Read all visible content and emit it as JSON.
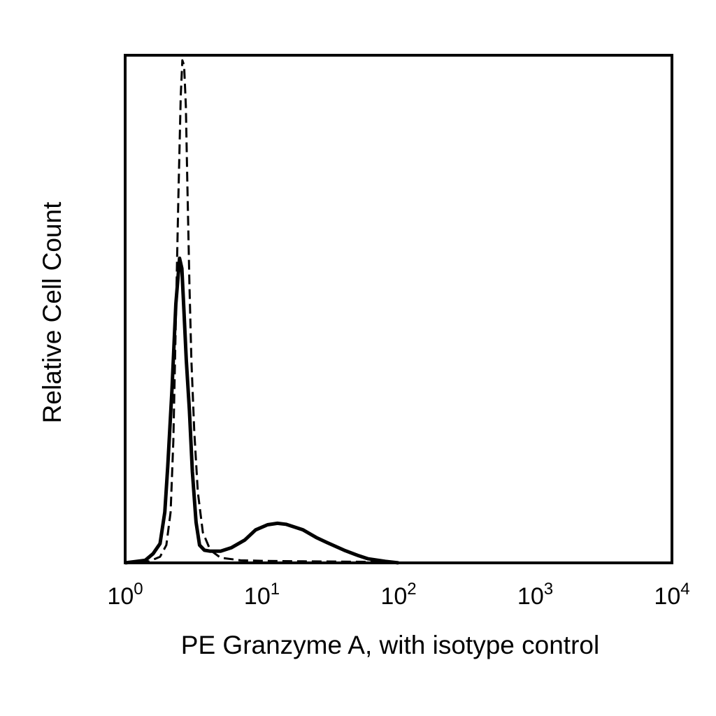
{
  "chart_data": {
    "type": "line",
    "title": "",
    "xlabel": "PE Granzyme A, with isotype control",
    "ylabel": "Relative Cell Count",
    "x_scale": "log",
    "xlim": [
      1,
      10000
    ],
    "ylim": [
      0,
      100
    ],
    "x_ticks": [
      {
        "base": "10",
        "exp": "0",
        "value": 1
      },
      {
        "base": "10",
        "exp": "1",
        "value": 10
      },
      {
        "base": "10",
        "exp": "2",
        "value": 100
      },
      {
        "base": "10",
        "exp": "3",
        "value": 1000
      },
      {
        "base": "10",
        "exp": "4",
        "value": 10000
      }
    ],
    "y_ticks": [],
    "grid": false,
    "legend": "none",
    "series": [
      {
        "style": "dashed",
        "color": "#000000",
        "x": [
          1.0,
          1.5,
          1.8,
          2.0,
          2.15,
          2.25,
          2.35,
          2.45,
          2.55,
          2.62,
          2.7,
          2.78,
          2.85,
          2.95,
          3.05,
          3.2,
          3.4,
          3.7,
          4.2,
          5.0,
          7.0,
          10.0,
          20.0,
          60.0,
          100.0
        ],
        "y": [
          0,
          0.3,
          1.2,
          3.5,
          10,
          24,
          48,
          72,
          92,
          99,
          98,
          90,
          75,
          55,
          40,
          26,
          14,
          6,
          2.5,
          1,
          0.5,
          0.4,
          0.3,
          0.2,
          0
        ]
      },
      {
        "style": "solid",
        "color": "#000000",
        "x": [
          1.0,
          1.4,
          1.6,
          1.8,
          1.95,
          2.05,
          2.2,
          2.35,
          2.5,
          2.6,
          2.7,
          2.8,
          2.95,
          3.1,
          3.3,
          3.5,
          3.8,
          4.2,
          5.0,
          6.0,
          7.5,
          9.0,
          11.0,
          13.0,
          15.0,
          20.0,
          25.0,
          30.0,
          40.0,
          50.0,
          60.0,
          80.0,
          100.0
        ],
        "y": [
          0,
          0.5,
          1.8,
          3.8,
          10,
          19,
          34,
          51,
          60,
          58,
          49,
          40,
          30,
          18,
          8,
          3.5,
          2.5,
          2.3,
          2.3,
          3,
          4.5,
          6.5,
          7.5,
          7.8,
          7.6,
          6.5,
          5,
          4,
          2.5,
          1.5,
          0.8,
          0.3,
          0
        ]
      }
    ]
  }
}
